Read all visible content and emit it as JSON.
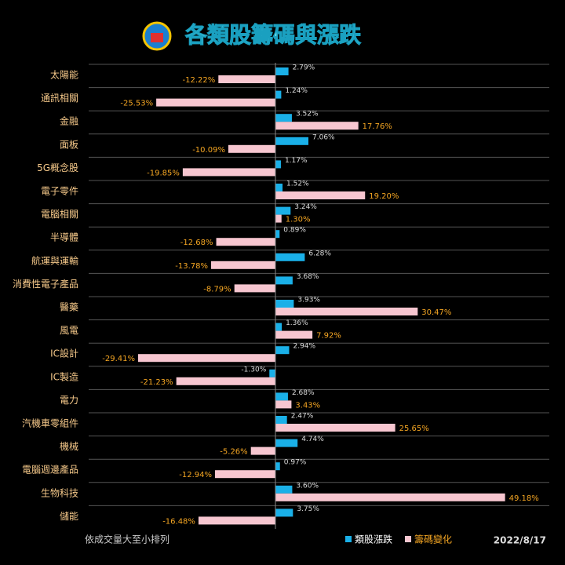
{
  "chart_data": {
    "type": "bar",
    "orientation": "horizontal",
    "title": "各類股籌碼與漲跌",
    "note": "依成交量大至小排列",
    "date": "2022/8/17",
    "categories": [
      "太陽能",
      "通訊相關",
      "金融",
      "面板",
      "5G概念股",
      "電子零件",
      "電腦相關",
      "半導體",
      "航運與運輸",
      "消費性電子產品",
      "醫藥",
      "風電",
      "IC設計",
      "IC製造",
      "電力",
      "汽機車零組件",
      "機械",
      "電腦週邊產品",
      "生物科技",
      "儲能"
    ],
    "series": [
      {
        "name": "類股漲跌",
        "color": "#1ab0e8",
        "values": [
          2.79,
          1.24,
          3.52,
          7.06,
          1.17,
          1.52,
          3.24,
          0.89,
          6.28,
          3.68,
          3.93,
          1.36,
          2.94,
          -1.3,
          2.68,
          2.47,
          4.74,
          0.97,
          3.6,
          3.75
        ],
        "value_labels": [
          "2.79%",
          "1.24%",
          "3.52%",
          "7.06%",
          "1.17%",
          "1.52%",
          "3.24%",
          "0.89%",
          "6.28%",
          "3.68%",
          "3.93%",
          "1.36%",
          "2.94%",
          "-1.30%",
          "2.68%",
          "2.47%",
          "4.74%",
          "0.97%",
          "3.60%",
          "3.75%"
        ]
      },
      {
        "name": "籌碼變化",
        "color": "#f7c6d0",
        "values": [
          -12.22,
          -25.53,
          17.76,
          -10.09,
          -19.85,
          19.2,
          1.3,
          -12.68,
          -13.78,
          -8.79,
          30.47,
          7.92,
          -29.41,
          -21.23,
          3.43,
          25.65,
          -5.26,
          -12.94,
          49.18,
          -16.48
        ],
        "value_labels": [
          "-12.22%",
          "-25.53%",
          "17.76%",
          "-10.09%",
          "-19.85%",
          "19.20%",
          "1.30%",
          "-12.68%",
          "-13.78%",
          "-8.79%",
          "30.47%",
          "7.92%",
          "-29.41%",
          "-21.23%",
          "3.43%",
          "25.65%",
          "-5.26%",
          "-12.94%",
          "49.18%",
          "-16.48%"
        ]
      }
    ]
  }
}
